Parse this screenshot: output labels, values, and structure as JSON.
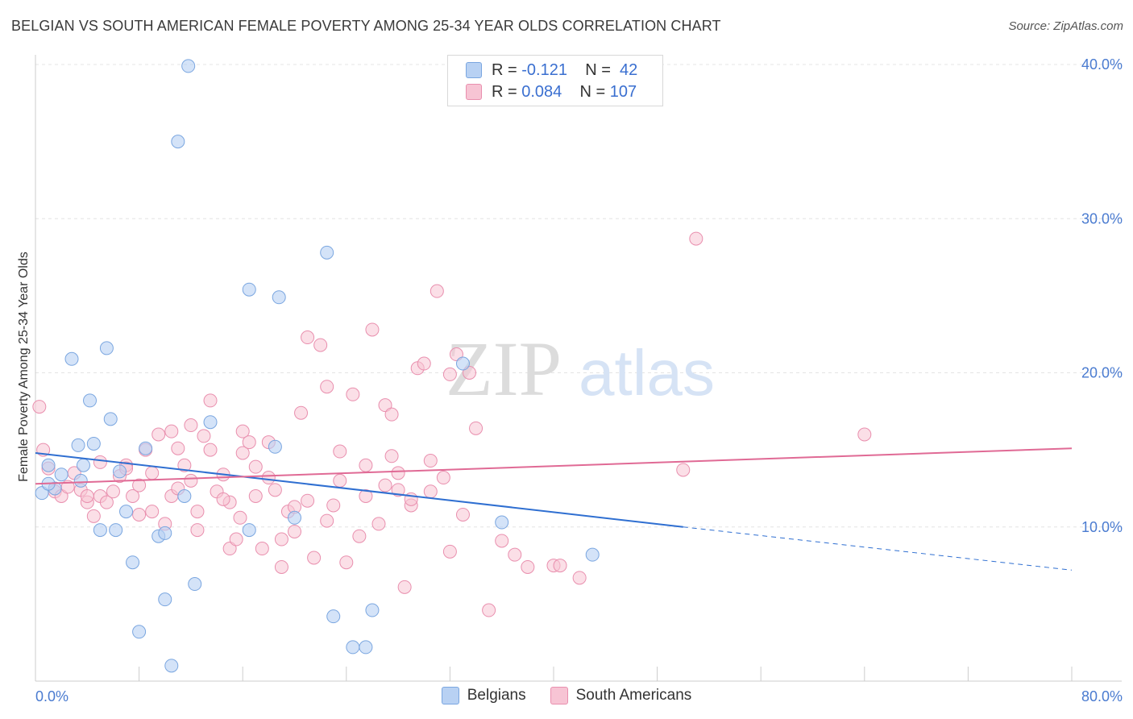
{
  "title": "BELGIAN VS SOUTH AMERICAN FEMALE POVERTY AMONG 25-34 YEAR OLDS CORRELATION CHART",
  "source": "Source: ZipAtlas.com",
  "watermark": {
    "zip": "ZIP",
    "atlas": "atlas"
  },
  "legend": {
    "rows": [
      {
        "r_label": "R =",
        "r_value": "-0.121",
        "n_label": "N =",
        "n_value": "42"
      },
      {
        "r_label": "R =",
        "r_value": "0.084",
        "n_label": "N =",
        "n_value": "107"
      }
    ]
  },
  "colors": {
    "belgians_fill": "#b8d1f3",
    "belgians_stroke": "#7aa6e0",
    "belgians_line": "#2f6fd1",
    "south_fill": "#f7c4d4",
    "south_stroke": "#e98fae",
    "south_line": "#e06a95",
    "grid": "#e4e4e4",
    "tick_text": "#4a7bd0"
  },
  "chart_data": {
    "type": "scatter",
    "title": "BELGIAN VS SOUTH AMERICAN FEMALE POVERTY AMONG 25-34 YEAR OLDS CORRELATION CHART",
    "xlabel": "",
    "ylabel": "Female Poverty Among 25-34 Year Olds",
    "xlim": [
      0,
      80
    ],
    "ylim": [
      0,
      40
    ],
    "x_tick_labels": [
      "0.0%",
      "80.0%"
    ],
    "y_ticks": [
      10,
      20,
      30,
      40
    ],
    "y_tick_labels": [
      "10.0%",
      "20.0%",
      "30.0%",
      "40.0%"
    ],
    "grid": true,
    "legend_position": "top-center",
    "series": [
      {
        "name": "Belgians",
        "color": "#b8d1f3",
        "trend": {
          "x": [
            0,
            50
          ],
          "y": [
            14.8,
            10.0
          ],
          "dashed_to": [
            80,
            7.2
          ]
        },
        "points": [
          [
            0.5,
            12.2
          ],
          [
            1.5,
            12.5
          ],
          [
            1.0,
            14.0
          ],
          [
            2.0,
            13.4
          ],
          [
            3.5,
            13.0
          ],
          [
            3.7,
            14.0
          ],
          [
            3.3,
            15.3
          ],
          [
            4.5,
            15.4
          ],
          [
            4.2,
            18.2
          ],
          [
            5.8,
            17.0
          ],
          [
            5.5,
            21.6
          ],
          [
            2.8,
            20.9
          ],
          [
            6.5,
            13.6
          ],
          [
            7.0,
            11.0
          ],
          [
            5.0,
            9.8
          ],
          [
            6.2,
            9.8
          ],
          [
            8.5,
            15.1
          ],
          [
            9.5,
            9.4
          ],
          [
            10.0,
            9.6
          ],
          [
            7.5,
            7.7
          ],
          [
            10.0,
            5.3
          ],
          [
            12.3,
            6.3
          ],
          [
            11.5,
            12.0
          ],
          [
            13.5,
            16.8
          ],
          [
            11.0,
            35.0
          ],
          [
            11.8,
            39.9
          ],
          [
            16.5,
            25.4
          ],
          [
            18.8,
            24.9
          ],
          [
            22.5,
            27.8
          ],
          [
            18.5,
            15.2
          ],
          [
            20.0,
            10.6
          ],
          [
            16.5,
            9.8
          ],
          [
            23.0,
            4.2
          ],
          [
            24.5,
            2.2
          ],
          [
            25.5,
            2.2
          ],
          [
            26.0,
            4.6
          ],
          [
            33.0,
            20.6
          ],
          [
            36.0,
            10.3
          ],
          [
            43.0,
            8.2
          ],
          [
            10.5,
            1.0
          ],
          [
            8.0,
            3.2
          ],
          [
            1.0,
            12.8
          ]
        ]
      },
      {
        "name": "South Americans",
        "color": "#f7c4d4",
        "trend": {
          "x": [
            0,
            80
          ],
          "y": [
            12.8,
            15.1
          ]
        },
        "points": [
          [
            0.3,
            17.8
          ],
          [
            0.6,
            15.0
          ],
          [
            1.0,
            13.8
          ],
          [
            1.5,
            12.3
          ],
          [
            2.0,
            12.0
          ],
          [
            2.5,
            12.6
          ],
          [
            3.0,
            13.5
          ],
          [
            3.5,
            12.4
          ],
          [
            4.0,
            11.6
          ],
          [
            4.5,
            10.7
          ],
          [
            5.0,
            12.0
          ],
          [
            5.5,
            11.6
          ],
          [
            5.0,
            14.2
          ],
          [
            6.0,
            12.3
          ],
          [
            6.5,
            13.3
          ],
          [
            7.0,
            14.0
          ],
          [
            7.5,
            12.0
          ],
          [
            8.0,
            10.8
          ],
          [
            8.5,
            15.0
          ],
          [
            9.0,
            13.5
          ],
          [
            9.5,
            16.0
          ],
          [
            10.0,
            10.2
          ],
          [
            10.5,
            12.0
          ],
          [
            10.5,
            16.2
          ],
          [
            11.0,
            15.1
          ],
          [
            11.5,
            14.0
          ],
          [
            12.0,
            16.6
          ],
          [
            12.0,
            13.0
          ],
          [
            12.5,
            11.0
          ],
          [
            13.0,
            15.9
          ],
          [
            13.5,
            15.0
          ],
          [
            13.5,
            18.2
          ],
          [
            14.0,
            12.3
          ],
          [
            14.5,
            13.4
          ],
          [
            15.0,
            8.6
          ],
          [
            15.0,
            11.6
          ],
          [
            15.5,
            9.2
          ],
          [
            16.0,
            14.8
          ],
          [
            16.0,
            16.2
          ],
          [
            16.5,
            15.5
          ],
          [
            17.0,
            12.0
          ],
          [
            17.0,
            13.9
          ],
          [
            17.5,
            8.6
          ],
          [
            18.0,
            15.5
          ],
          [
            18.5,
            12.4
          ],
          [
            19.0,
            7.4
          ],
          [
            19.0,
            9.2
          ],
          [
            19.5,
            11.0
          ],
          [
            20.0,
            11.3
          ],
          [
            20.5,
            17.4
          ],
          [
            21.0,
            22.3
          ],
          [
            21.5,
            8.0
          ],
          [
            22.0,
            21.8
          ],
          [
            22.5,
            10.4
          ],
          [
            22.5,
            19.1
          ],
          [
            23.0,
            11.4
          ],
          [
            23.5,
            14.9
          ],
          [
            24.0,
            7.7
          ],
          [
            24.5,
            18.6
          ],
          [
            25.0,
            9.4
          ],
          [
            25.5,
            12.0
          ],
          [
            26.0,
            22.8
          ],
          [
            26.5,
            10.2
          ],
          [
            27.0,
            17.9
          ],
          [
            27.5,
            14.6
          ],
          [
            27.5,
            17.3
          ],
          [
            28.0,
            12.4
          ],
          [
            28.5,
            6.1
          ],
          [
            29.0,
            11.4
          ],
          [
            29.5,
            20.3
          ],
          [
            30.0,
            20.6
          ],
          [
            30.5,
            12.3
          ],
          [
            31.0,
            25.3
          ],
          [
            31.5,
            13.2
          ],
          [
            32.0,
            19.9
          ],
          [
            32.0,
            8.4
          ],
          [
            32.5,
            21.2
          ],
          [
            33.0,
            10.8
          ],
          [
            33.5,
            20.0
          ],
          [
            34.0,
            16.4
          ],
          [
            35.0,
            4.6
          ],
          [
            36.0,
            9.1
          ],
          [
            37.0,
            8.2
          ],
          [
            38.0,
            7.4
          ],
          [
            40.0,
            7.5
          ],
          [
            40.5,
            7.5
          ],
          [
            42.0,
            6.7
          ],
          [
            50.0,
            13.7
          ],
          [
            51.0,
            28.7
          ],
          [
            64.0,
            16.0
          ],
          [
            4.0,
            12.0
          ],
          [
            7.0,
            13.8
          ],
          [
            8.0,
            12.7
          ],
          [
            9.0,
            11.0
          ],
          [
            11.0,
            12.5
          ],
          [
            12.5,
            9.8
          ],
          [
            14.5,
            11.8
          ],
          [
            15.8,
            10.6
          ],
          [
            18.0,
            13.2
          ],
          [
            20.0,
            9.7
          ],
          [
            21.0,
            11.7
          ],
          [
            23.5,
            13.0
          ],
          [
            25.5,
            14.0
          ],
          [
            27.0,
            12.7
          ],
          [
            28.0,
            13.5
          ],
          [
            29.0,
            11.8
          ],
          [
            30.5,
            14.3
          ]
        ]
      }
    ]
  }
}
